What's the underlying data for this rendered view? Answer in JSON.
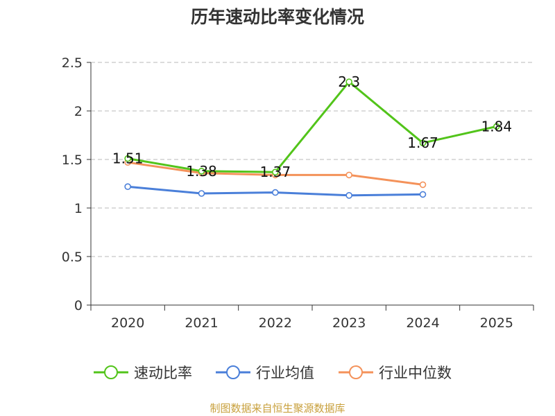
{
  "chart_data": {
    "type": "line",
    "title": "历年速动比率变化情况",
    "categories": [
      "2020",
      "2021",
      "2022",
      "2023",
      "2024",
      "2025"
    ],
    "yticks": [
      "0",
      "0.5",
      "1",
      "1.5",
      "2",
      "2.5"
    ],
    "ylim": [
      0,
      2.5
    ],
    "grid": true,
    "legend_position": "bottom",
    "series": [
      {
        "name": "速动比率",
        "color": "#52c41a",
        "values": [
          1.51,
          1.38,
          1.37,
          2.3,
          1.67,
          1.84
        ],
        "labels": [
          "1.51",
          "1.38",
          "1.37",
          "2.3",
          "1.67",
          "1.84"
        ]
      },
      {
        "name": "行业均值",
        "color": "#4a7fd9",
        "values": [
          1.22,
          1.15,
          1.16,
          1.13,
          1.14,
          null
        ]
      },
      {
        "name": "行业中位数",
        "color": "#f4925a",
        "values": [
          1.47,
          1.36,
          1.34,
          1.34,
          1.24,
          null
        ]
      }
    ],
    "source": "制图数据来自恒生聚源数据库"
  }
}
